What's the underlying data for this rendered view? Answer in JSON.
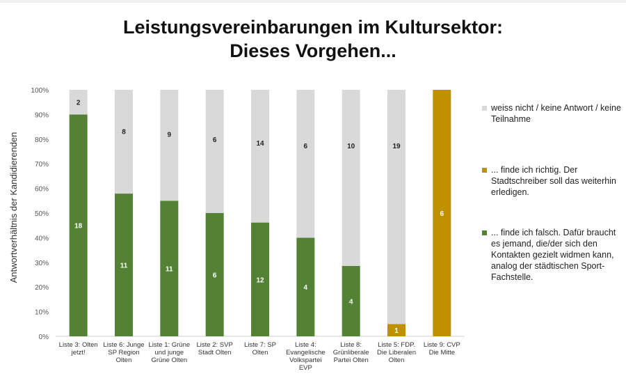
{
  "title_line1": "Leistungsvereinbarungen im Kultursektor:",
  "title_line2": "Dieses Vorgehen...",
  "colors": {
    "falsch": "#548235",
    "richtig": "#BF9000",
    "unknown": "#D9D9D9"
  },
  "legend": [
    {
      "key": "unknown",
      "label": "weiss nicht / keine Antwort / keine Teilnahme"
    },
    {
      "key": "richtig",
      "label": "... finde ich richtig. Der Stadtschreiber soll das weiterhin erledigen."
    },
    {
      "key": "falsch",
      "label": "... finde ich falsch. Dafür braucht es jemand, die/der sich den Kontakten gezielt widmen kann, analog der städtischen Sport-Fachstelle."
    }
  ],
  "chart_data": {
    "type": "bar",
    "stacked": true,
    "percent": true,
    "title": "Leistungsvereinbarungen im Kultursektor: Dieses Vorgehen...",
    "ylabel": "Antwortverhältnis der Kandidierenden",
    "xlabel": "",
    "ylim": [
      0,
      100
    ],
    "yticks": [
      "0%",
      "10%",
      "20%",
      "30%",
      "40%",
      "50%",
      "60%",
      "70%",
      "80%",
      "90%",
      "100%"
    ],
    "categories": [
      [
        "Liste 3: Olten",
        "jetzt!"
      ],
      [
        "Liste 6: Junge",
        "SP Region",
        "Olten"
      ],
      [
        "Liste 1: Grüne",
        "und junge",
        "Grüne Olten"
      ],
      [
        "Liste 2: SVP",
        "Stadt Olten"
      ],
      [
        "Liste 7: SP",
        "Olten"
      ],
      [
        "Liste 4:",
        "Evangelische",
        "Volkspartei",
        "EVP"
      ],
      [
        "Liste 8:",
        "Grünliberale",
        "Partei Olten"
      ],
      [
        "Liste 5: FDP.",
        "Die Liberalen",
        "Olten"
      ],
      [
        "Liste 9: CVP",
        "Die Mitte"
      ]
    ],
    "series": [
      {
        "key": "falsch",
        "name": "... finde ich falsch.",
        "values": [
          18,
          11,
          11,
          6,
          12,
          4,
          4,
          0,
          0
        ]
      },
      {
        "key": "richtig",
        "name": "... finde ich richtig.",
        "values": [
          0,
          0,
          0,
          0,
          0,
          0,
          0,
          1,
          6
        ]
      },
      {
        "key": "unknown",
        "name": "weiss nicht / keine Antwort / keine Teilnahme",
        "values": [
          2,
          8,
          9,
          6,
          14,
          6,
          10,
          19,
          0
        ]
      }
    ]
  }
}
